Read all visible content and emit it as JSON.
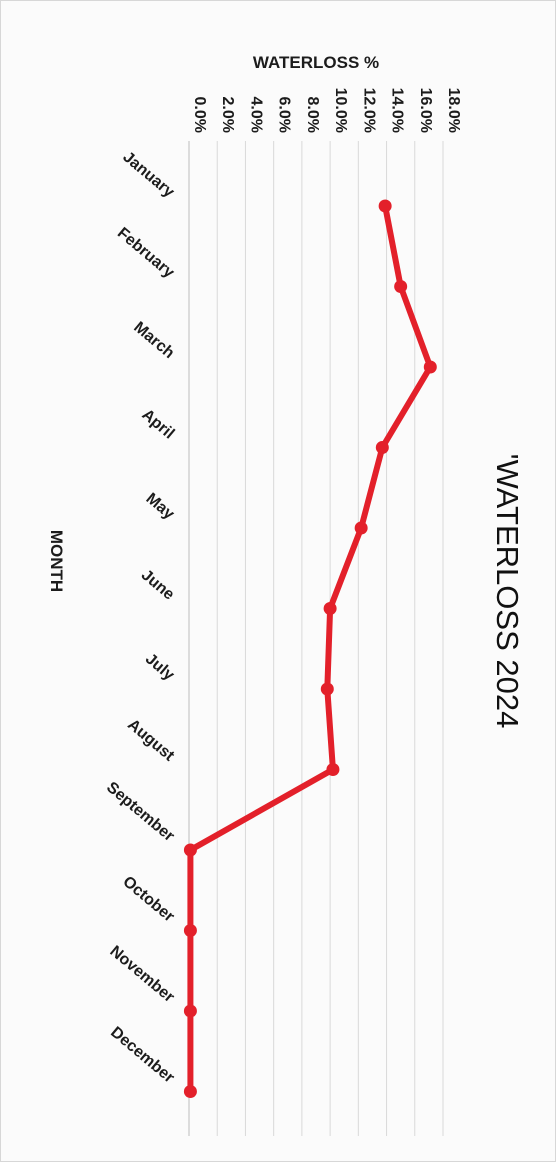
{
  "chart_data": {
    "type": "line",
    "title": "'WATERLOSS 2024",
    "xlabel": "MONTH",
    "ylabel": "WATERLOSS %",
    "categories": [
      "January",
      "February",
      "March",
      "April",
      "May",
      "June",
      "July",
      "August",
      "September",
      "October",
      "November",
      "December"
    ],
    "y_ticks": [
      "0.0%",
      "2.0%",
      "4.0%",
      "6.0%",
      "8.0%",
      "10.0%",
      "12.0%",
      "14.0%",
      "16.0%",
      "18.0%"
    ],
    "ylim": [
      0,
      18
    ],
    "grid": true,
    "series": [
      {
        "values": [
          13.9,
          15.0,
          17.1,
          13.7,
          12.2,
          10.0,
          9.8,
          10.2,
          0.1,
          0.1,
          0.1,
          0.1
        ]
      }
    ],
    "line_color": "#e3202a"
  }
}
